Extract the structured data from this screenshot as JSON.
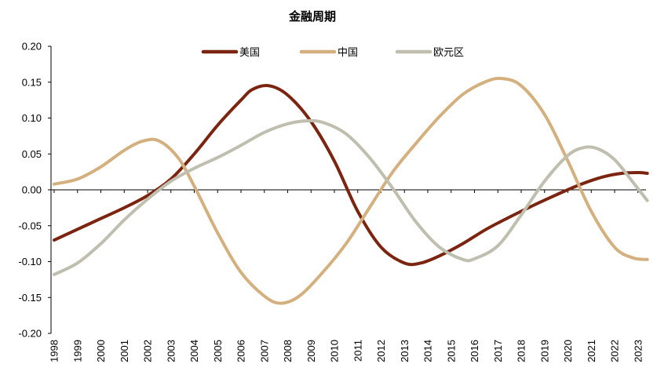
{
  "chart_data": {
    "type": "line",
    "title": "金融周期",
    "xlabel": "",
    "ylabel": "",
    "ylim": [
      -0.2,
      0.2
    ],
    "yticks": [
      0.2,
      0.15,
      0.1,
      0.05,
      0.0,
      -0.05,
      -0.1,
      -0.15,
      -0.2
    ],
    "ytick_labels": [
      "0.20",
      "0.15",
      "0.10",
      "0.05",
      "0.00",
      "-0.05",
      "-0.10",
      "-0.15",
      "-0.20"
    ],
    "categories": [
      "1998",
      "1999",
      "2000",
      "2001",
      "2002",
      "2003",
      "2004",
      "2005",
      "2006",
      "2007",
      "2008",
      "2009",
      "2010",
      "2011",
      "2012",
      "2013",
      "2014",
      "2015",
      "2016",
      "2017",
      "2018",
      "2019",
      "2020",
      "2021",
      "2022",
      "2023"
    ],
    "legend_position": "top-center",
    "series": [
      {
        "name": "美国",
        "color": "#7B2410",
        "points": [
          [
            1998.0,
            -0.07
          ],
          [
            1999.0,
            -0.055
          ],
          [
            2000.0,
            -0.04
          ],
          [
            2001.0,
            -0.025
          ],
          [
            2002.0,
            -0.008
          ],
          [
            2003.0,
            0.015
          ],
          [
            2004.0,
            0.05
          ],
          [
            2005.0,
            0.09
          ],
          [
            2006.0,
            0.125
          ],
          [
            2006.5,
            0.14
          ],
          [
            2007.2,
            0.145
          ],
          [
            2008.0,
            0.132
          ],
          [
            2009.0,
            0.095
          ],
          [
            2010.0,
            0.04
          ],
          [
            2011.0,
            -0.03
          ],
          [
            2012.0,
            -0.08
          ],
          [
            2013.0,
            -0.102
          ],
          [
            2013.7,
            -0.102
          ],
          [
            2014.5,
            -0.092
          ],
          [
            2015.5,
            -0.075
          ],
          [
            2016.5,
            -0.055
          ],
          [
            2017.5,
            -0.038
          ],
          [
            2018.5,
            -0.022
          ],
          [
            2019.5,
            -0.007
          ],
          [
            2020.5,
            0.007
          ],
          [
            2021.5,
            0.018
          ],
          [
            2022.3,
            0.023
          ],
          [
            2023.0,
            0.024
          ],
          [
            2023.4,
            0.023
          ]
        ]
      },
      {
        "name": "中国",
        "color": "#D4B07F",
        "points": [
          [
            1998.0,
            0.008
          ],
          [
            1999.0,
            0.015
          ],
          [
            2000.0,
            0.032
          ],
          [
            2001.0,
            0.055
          ],
          [
            2001.8,
            0.068
          ],
          [
            2002.5,
            0.068
          ],
          [
            2003.3,
            0.045
          ],
          [
            2004.0,
            0.005
          ],
          [
            2005.0,
            -0.06
          ],
          [
            2006.0,
            -0.115
          ],
          [
            2007.0,
            -0.148
          ],
          [
            2007.7,
            -0.158
          ],
          [
            2008.5,
            -0.148
          ],
          [
            2009.5,
            -0.115
          ],
          [
            2010.5,
            -0.075
          ],
          [
            2011.5,
            -0.025
          ],
          [
            2012.5,
            0.025
          ],
          [
            2013.5,
            0.065
          ],
          [
            2014.5,
            0.102
          ],
          [
            2015.5,
            0.133
          ],
          [
            2016.5,
            0.151
          ],
          [
            2017.2,
            0.155
          ],
          [
            2018.0,
            0.145
          ],
          [
            2019.0,
            0.105
          ],
          [
            2020.0,
            0.04
          ],
          [
            2021.0,
            -0.03
          ],
          [
            2022.0,
            -0.08
          ],
          [
            2022.8,
            -0.095
          ],
          [
            2023.4,
            -0.097
          ]
        ]
      },
      {
        "name": "欧元区",
        "color": "#BFBEAF",
        "points": [
          [
            1998.0,
            -0.118
          ],
          [
            1999.0,
            -0.102
          ],
          [
            2000.0,
            -0.075
          ],
          [
            2001.0,
            -0.042
          ],
          [
            2002.0,
            -0.013
          ],
          [
            2003.0,
            0.012
          ],
          [
            2004.0,
            0.03
          ],
          [
            2005.0,
            0.045
          ],
          [
            2006.0,
            0.062
          ],
          [
            2007.0,
            0.08
          ],
          [
            2008.0,
            0.092
          ],
          [
            2008.8,
            0.096
          ],
          [
            2009.5,
            0.094
          ],
          [
            2010.5,
            0.078
          ],
          [
            2011.5,
            0.045
          ],
          [
            2012.5,
            0.002
          ],
          [
            2013.5,
            -0.045
          ],
          [
            2014.5,
            -0.08
          ],
          [
            2015.5,
            -0.097
          ],
          [
            2016.0,
            -0.096
          ],
          [
            2017.0,
            -0.078
          ],
          [
            2018.0,
            -0.035
          ],
          [
            2019.0,
            0.012
          ],
          [
            2020.0,
            0.048
          ],
          [
            2020.7,
            0.059
          ],
          [
            2021.3,
            0.057
          ],
          [
            2022.0,
            0.042
          ],
          [
            2022.8,
            0.01
          ],
          [
            2023.4,
            -0.015
          ]
        ]
      }
    ]
  }
}
